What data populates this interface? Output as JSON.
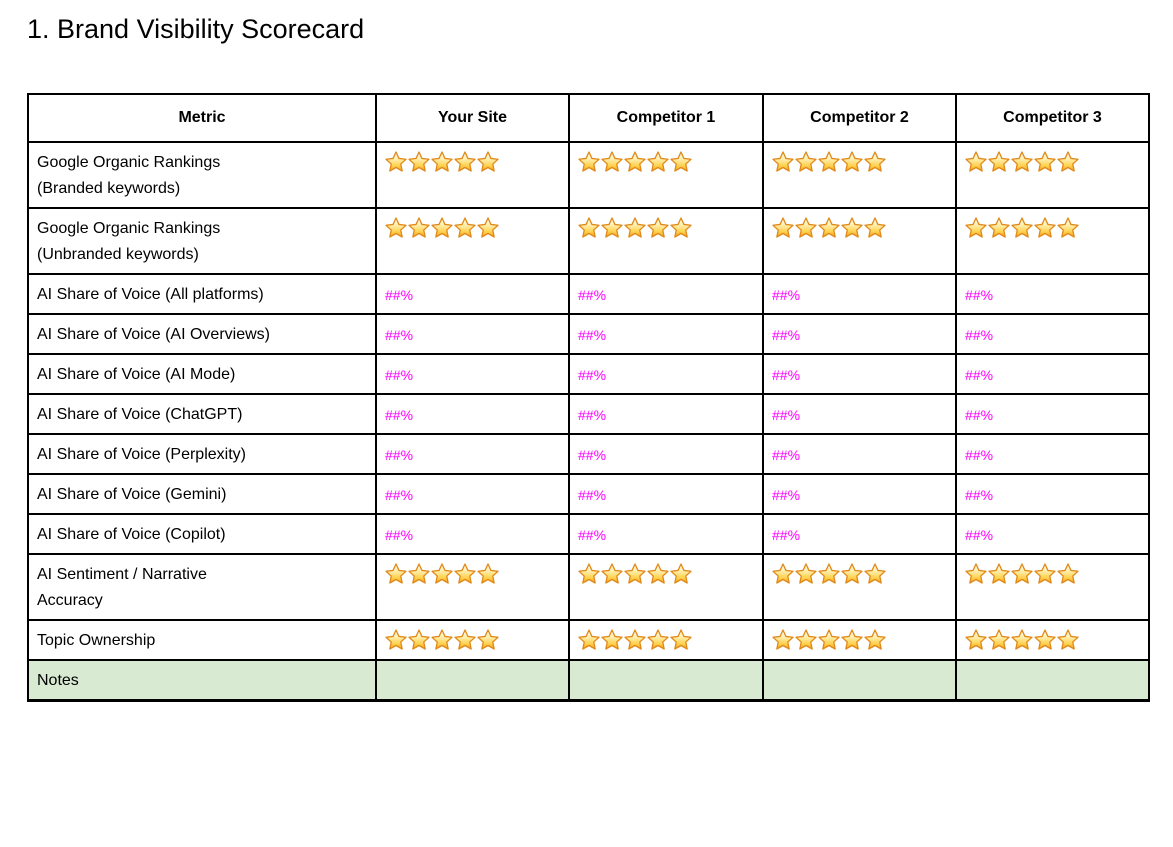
{
  "page_title": "1. Brand Visibility Scorecard",
  "colors": {
    "percent_text": "#ff00ff",
    "notes_row_bg": "#d9ead3",
    "table_border": "#000000",
    "star_outline": "#e0891a",
    "star_gold": "#f7a21c",
    "star_highlight": "#fffef2"
  },
  "icons": {
    "star": "star-icon"
  },
  "table": {
    "columns": [
      "Metric",
      "Your Site",
      "Competitor 1",
      "Competitor 2",
      "Competitor 3"
    ],
    "rows": [
      {
        "metric": "Google Organic Rankings\n(Branded keywords)",
        "type": "stars",
        "values": [
          5,
          5,
          5,
          5
        ]
      },
      {
        "metric": "Google Organic Rankings\n(Unbranded keywords)",
        "type": "stars",
        "values": [
          5,
          5,
          5,
          5
        ]
      },
      {
        "metric": "AI Share of Voice (All platforms)",
        "type": "percent",
        "values": [
          "##%",
          "##%",
          "##%",
          "##%"
        ]
      },
      {
        "metric": "AI Share of Voice (AI Overviews)",
        "type": "percent",
        "values": [
          "##%",
          "##%",
          "##%",
          "##%"
        ]
      },
      {
        "metric": "AI Share of Voice (AI Mode)",
        "type": "percent",
        "values": [
          "##%",
          "##%",
          "##%",
          "##%"
        ]
      },
      {
        "metric": "AI Share of Voice (ChatGPT)",
        "type": "percent",
        "values": [
          "##%",
          "##%",
          "##%",
          "##%"
        ]
      },
      {
        "metric": "AI Share of Voice (Perplexity)",
        "type": "percent",
        "values": [
          "##%",
          "##%",
          "##%",
          "##%"
        ]
      },
      {
        "metric": "AI Share of Voice (Gemini)",
        "type": "percent",
        "values": [
          "##%",
          "##%",
          "##%",
          "##%"
        ]
      },
      {
        "metric": "AI Share of Voice (Copilot)",
        "type": "percent",
        "values": [
          "##%",
          "##%",
          "##%",
          "##%"
        ]
      },
      {
        "metric": "AI Sentiment / Narrative\nAccuracy",
        "type": "stars",
        "values": [
          5,
          5,
          5,
          5
        ]
      },
      {
        "metric": "Topic Ownership",
        "type": "stars",
        "values": [
          5,
          5,
          5,
          5
        ]
      },
      {
        "metric": "Notes",
        "type": "notes",
        "values": [
          "",
          "",
          "",
          ""
        ]
      }
    ]
  }
}
